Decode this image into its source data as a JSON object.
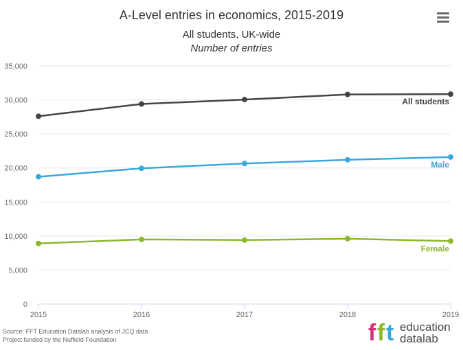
{
  "header": {
    "title": "A-Level entries in economics, 2015-2019",
    "subtitle": "All students, UK-wide",
    "units": "Number of entries"
  },
  "footer": {
    "source_line1": "Source: FFT Education Datalab analysis of JCQ data",
    "source_line2": "Project funded by the Nuffield Foundation",
    "logo_letters": "fft",
    "logo_line1": "education",
    "logo_line2": "datalab"
  },
  "chart_data": {
    "type": "line",
    "title": "A-Level entries in economics, 2015-2019",
    "subtitle": "All students, UK-wide",
    "ylabel": "Number of entries",
    "x": [
      "2015",
      "2016",
      "2017",
      "2018",
      "2019"
    ],
    "ylim": [
      0,
      35000
    ],
    "yticks": [
      "0",
      "5,000",
      "10,000",
      "15,000",
      "20,000",
      "25,000",
      "30,000",
      "35,000"
    ],
    "ytick_values": [
      0,
      5000,
      10000,
      15000,
      20000,
      25000,
      30000,
      35000
    ],
    "grid": true,
    "series": [
      {
        "name": "All students",
        "color": "#444444",
        "values": [
          27600,
          29400,
          30050,
          30800,
          30850
        ]
      },
      {
        "name": "Male",
        "color": "#3aa8dc",
        "values": [
          18700,
          19950,
          20650,
          21200,
          21600
        ]
      },
      {
        "name": "Female",
        "color": "#8cb82b",
        "values": [
          8900,
          9500,
          9400,
          9600,
          9250
        ]
      }
    ]
  },
  "colors": {
    "logo_pink": "#d6337a",
    "logo_green": "#8cb82b",
    "logo_blue": "#3aa8dc"
  }
}
